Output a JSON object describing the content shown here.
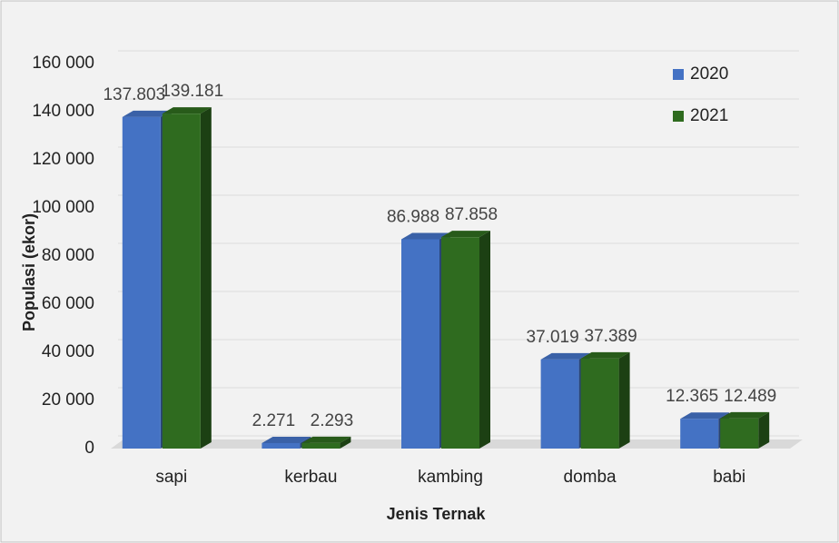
{
  "chart_data": {
    "type": "bar",
    "x_label": "Jenis Ternak",
    "y_label": "Populasi (ekor)",
    "categories": [
      "sapi",
      "kerbau",
      "kambing",
      "domba",
      "babi"
    ],
    "series": [
      {
        "name": "2020",
        "color": "#4472c4",
        "values": [
          137803,
          2271,
          86988,
          37019,
          12365
        ],
        "value_labels": [
          "137.803",
          "2.271",
          "86.988",
          "37.019",
          "12.365"
        ]
      },
      {
        "name": "2021",
        "color": "#2f6b1f",
        "values": [
          139181,
          2293,
          87858,
          37389,
          12489
        ],
        "value_labels": [
          "139.181",
          "2.293",
          "87.858",
          "37.389",
          "12.489"
        ]
      }
    ],
    "ylim": [
      0,
      160000
    ],
    "yticks": [
      0,
      {
        "value": 20000,
        "label": "20 000"
      },
      {
        "value": 40000,
        "label": "40 000"
      },
      {
        "value": 60000,
        "label": "60 000"
      },
      {
        "value": 80000,
        "label": "80 000"
      },
      {
        "value": 100000,
        "label": "100 000"
      },
      {
        "value": 120000,
        "label": "120 000"
      },
      {
        "value": 140000,
        "label": "140 000"
      },
      {
        "value": 160000,
        "label": "160 000"
      }
    ],
    "grid": true,
    "legend": "upper right"
  }
}
